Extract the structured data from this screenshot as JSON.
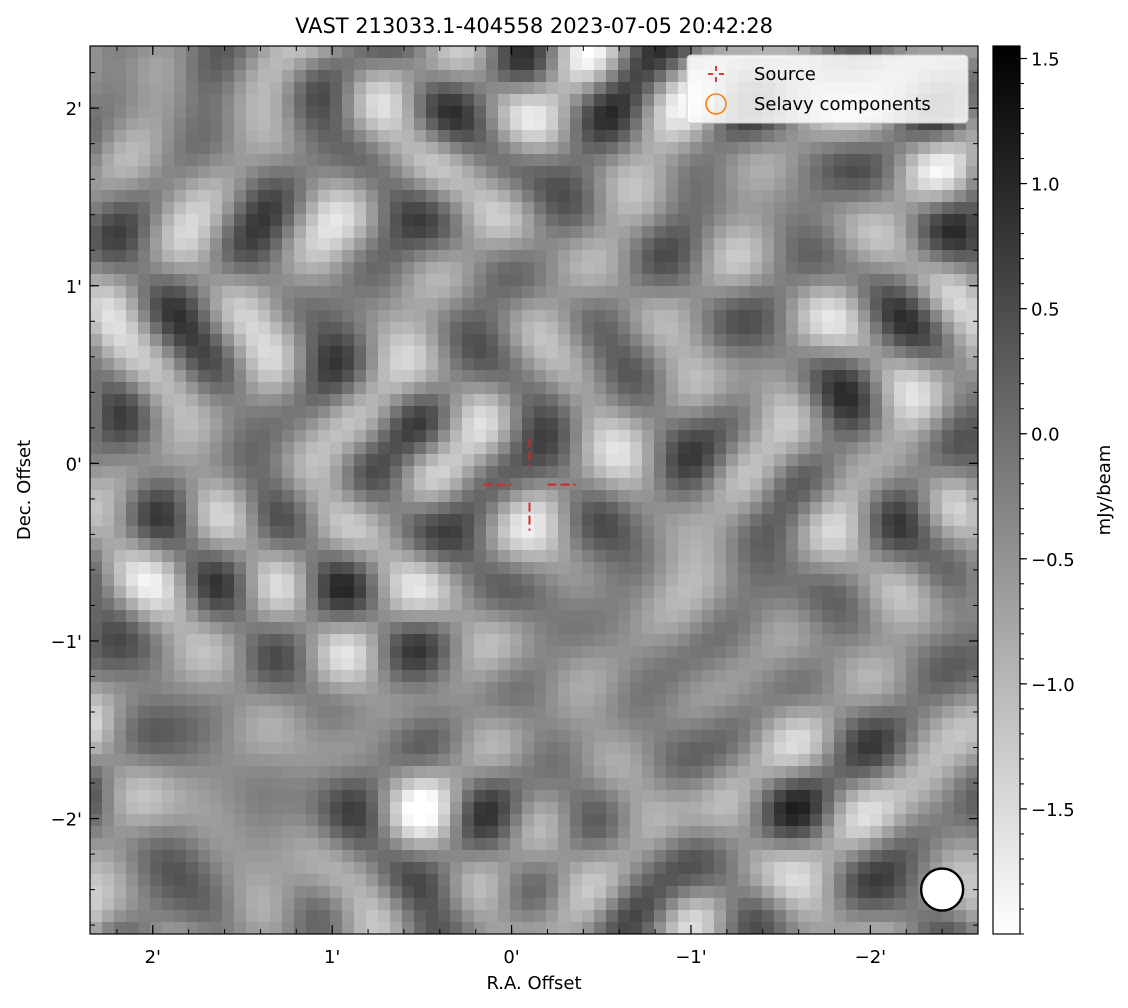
{
  "chart_data": {
    "type": "heatmap",
    "title": "VAST 213033.1-404558 2023-07-05 20:42:28",
    "xlabel": "R.A. Offset",
    "ylabel": "Dec. Offset",
    "xlim": [
      2.35,
      -2.6
    ],
    "ylim": [
      -2.65,
      2.35
    ],
    "x_ticks": [
      {
        "value": 2,
        "label": "2'"
      },
      {
        "value": 1,
        "label": "1'"
      },
      {
        "value": 0,
        "label": "0'"
      },
      {
        "value": -1,
        "label": "−1'"
      },
      {
        "value": -2,
        "label": "−2'"
      }
    ],
    "y_ticks": [
      {
        "value": 2,
        "label": "2'"
      },
      {
        "value": 1,
        "label": "1'"
      },
      {
        "value": 0,
        "label": "0'"
      },
      {
        "value": -1,
        "label": "−1'"
      },
      {
        "value": -2,
        "label": "−2'"
      }
    ],
    "colorbar": {
      "label": "mJy/beam",
      "range": [
        -2.0,
        1.55
      ],
      "colormap": "gray_r",
      "ticks": [
        {
          "value": 1.5,
          "label": "1.5"
        },
        {
          "value": 1.0,
          "label": "1.0"
        },
        {
          "value": 0.5,
          "label": "0.5"
        },
        {
          "value": 0.0,
          "label": "0.0"
        },
        {
          "value": -0.5,
          "label": "−0.5"
        },
        {
          "value": -1.0,
          "label": "−1.0"
        },
        {
          "value": -1.5,
          "label": "−1.5"
        }
      ]
    },
    "legend": {
      "placement": "top-right",
      "entries": [
        {
          "label": "Source",
          "marker": "dashed-cross",
          "color": "#d62728"
        },
        {
          "label": "Selavy components",
          "marker": "circle",
          "color": "#ff7f0e"
        }
      ]
    },
    "source": {
      "ra_offset": -0.1,
      "dec_offset": -0.12,
      "color": "#d62728"
    },
    "beam": {
      "ra_offset": -2.4,
      "dec_offset": -2.4,
      "color": "#000000"
    },
    "grid": false
  }
}
